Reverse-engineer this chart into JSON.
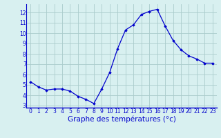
{
  "hours": [
    0,
    1,
    2,
    3,
    4,
    5,
    6,
    7,
    8,
    9,
    10,
    11,
    12,
    13,
    14,
    15,
    16,
    17,
    18,
    19,
    20,
    21,
    22,
    23
  ],
  "temps": [
    5.3,
    4.8,
    4.5,
    4.6,
    4.6,
    4.4,
    3.9,
    3.6,
    3.2,
    4.6,
    6.2,
    8.5,
    10.3,
    10.8,
    11.8,
    12.1,
    12.3,
    10.7,
    9.3,
    8.4,
    7.8,
    7.5,
    7.1,
    7.1
  ],
  "line_color": "#0000cc",
  "marker": "D",
  "marker_size": 1.8,
  "bg_color": "#d8f0f0",
  "grid_color": "#aacccc",
  "axis_label_color": "#0000cc",
  "xlabel": "Graphe des températures (°c)",
  "ylim": [
    2.8,
    12.8
  ],
  "xlim": [
    -0.5,
    23.5
  ],
  "yticks": [
    3,
    4,
    5,
    6,
    7,
    8,
    9,
    10,
    11,
    12
  ],
  "xticks": [
    0,
    1,
    2,
    3,
    4,
    5,
    6,
    7,
    8,
    9,
    10,
    11,
    12,
    13,
    14,
    15,
    16,
    17,
    18,
    19,
    20,
    21,
    22,
    23
  ],
  "tick_fontsize": 5.5,
  "xlabel_fontsize": 7.5,
  "spine_color": "#0000cc",
  "linewidth": 0.9
}
